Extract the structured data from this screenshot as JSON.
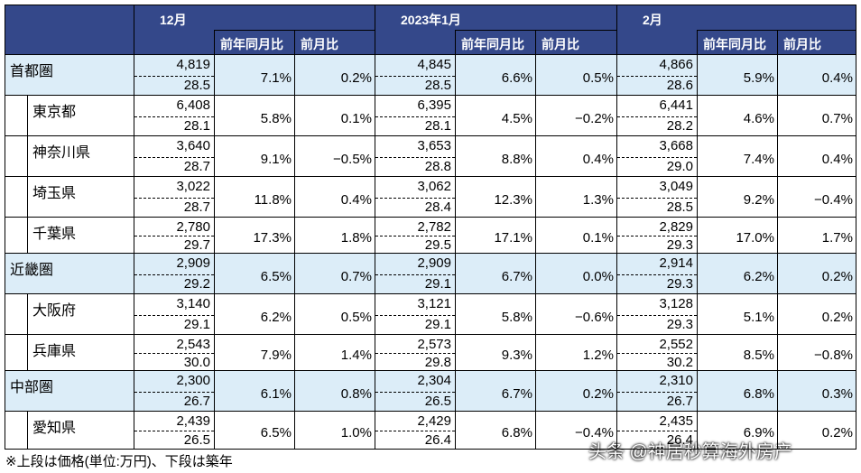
{
  "header": {
    "groups": [
      {
        "label": "12月",
        "columns": [
          "前年同月比",
          "前月比"
        ]
      },
      {
        "label": "2023年1月",
        "columns": [
          "前年同月比",
          "前月比"
        ]
      },
      {
        "label": "2月",
        "columns": [
          "前年同月比",
          "前月比"
        ]
      }
    ]
  },
  "rows": [
    {
      "name": "首都圏",
      "level": "region",
      "cells": [
        [
          "4,819",
          "28.5",
          "7.1%",
          "0.2%"
        ],
        [
          "4,845",
          "28.5",
          "6.6%",
          "0.5%"
        ],
        [
          "4,866",
          "28.6",
          "5.9%",
          "0.4%"
        ]
      ]
    },
    {
      "name": "東京都",
      "level": "sub",
      "cells": [
        [
          "6,408",
          "28.1",
          "5.8%",
          "0.1%"
        ],
        [
          "6,395",
          "28.1",
          "4.5%",
          "−0.2%"
        ],
        [
          "6,441",
          "28.2",
          "4.6%",
          "0.7%"
        ]
      ]
    },
    {
      "name": "神奈川県",
      "level": "sub",
      "cells": [
        [
          "3,640",
          "28.7",
          "9.1%",
          "−0.5%"
        ],
        [
          "3,653",
          "28.8",
          "8.8%",
          "0.4%"
        ],
        [
          "3,668",
          "29.0",
          "7.4%",
          "0.4%"
        ]
      ]
    },
    {
      "name": "埼玉県",
      "level": "sub",
      "cells": [
        [
          "3,022",
          "28.7",
          "11.8%",
          "0.4%"
        ],
        [
          "3,062",
          "28.4",
          "12.3%",
          "1.3%"
        ],
        [
          "3,049",
          "28.5",
          "9.2%",
          "−0.4%"
        ]
      ]
    },
    {
      "name": "千葉県",
      "level": "sub",
      "cells": [
        [
          "2,780",
          "29.7",
          "17.3%",
          "1.8%"
        ],
        [
          "2,782",
          "29.5",
          "17.1%",
          "0.1%"
        ],
        [
          "2,829",
          "29.3",
          "17.0%",
          "1.7%"
        ]
      ]
    },
    {
      "name": "近畿圏",
      "level": "region",
      "cells": [
        [
          "2,909",
          "29.2",
          "6.5%",
          "0.7%"
        ],
        [
          "2,909",
          "29.1",
          "6.7%",
          "0.0%"
        ],
        [
          "2,914",
          "29.3",
          "6.2%",
          "0.2%"
        ]
      ]
    },
    {
      "name": "大阪府",
      "level": "sub",
      "cells": [
        [
          "3,140",
          "29.1",
          "6.2%",
          "0.5%"
        ],
        [
          "3,121",
          "29.1",
          "5.8%",
          "−0.6%"
        ],
        [
          "3,128",
          "29.3",
          "5.1%",
          "0.2%"
        ]
      ]
    },
    {
      "name": "兵庫県",
      "level": "sub",
      "cells": [
        [
          "2,543",
          "30.0",
          "7.9%",
          "1.4%"
        ],
        [
          "2,573",
          "29.8",
          "9.3%",
          "1.2%"
        ],
        [
          "2,552",
          "30.2",
          "8.5%",
          "−0.8%"
        ]
      ]
    },
    {
      "name": "中部圏",
      "level": "region",
      "cells": [
        [
          "2,300",
          "26.7",
          "6.1%",
          "0.8%"
        ],
        [
          "2,304",
          "26.5",
          "6.7%",
          "0.2%"
        ],
        [
          "2,310",
          "26.7",
          "6.8%",
          "0.3%"
        ]
      ]
    },
    {
      "name": "愛知県",
      "level": "sub",
      "cells": [
        [
          "2,439",
          "26.5",
          "6.5%",
          "1.0%"
        ],
        [
          "2,429",
          "26.4",
          "6.8%",
          "−0.4%"
        ],
        [
          "2,435",
          "26.4",
          "6.9%",
          "0.2%"
        ]
      ]
    }
  ],
  "footnote": "※上段は価格(単位:万円)、下段は築年",
  "watermark": "头条 @神居秒算海外房产"
}
